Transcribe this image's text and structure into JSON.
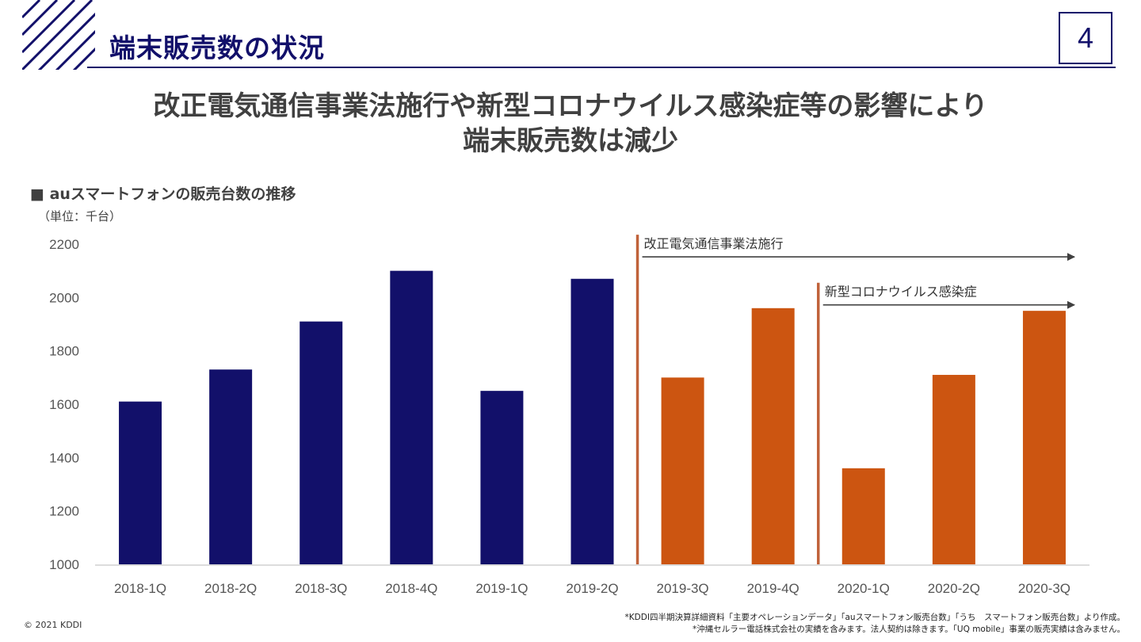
{
  "header": {
    "title": "端末販売数の状況",
    "page_number": "4"
  },
  "headline": {
    "line1": "改正電気通信事業法施行や新型コロナウイルス感染症等の影響により",
    "line2": "端末販売数は減少"
  },
  "chart_heading": "■ auスマートフォンの販売台数の推移",
  "unit_label": "（単位：千台）",
  "colors": {
    "navy": "#12106a",
    "orange": "#cc5511",
    "marker": "#c0623a",
    "arrow": "#404040"
  },
  "chart_data": {
    "type": "bar",
    "title": "auスマートフォンの販売台数の推移",
    "ylabel": "（単位：千台）",
    "xlabel": "",
    "ylim": [
      1000,
      2200
    ],
    "yticks": [
      "1000",
      "1200",
      "1400",
      "1600",
      "1800",
      "2000",
      "2200"
    ],
    "grid": false,
    "categories": [
      "2018-1Q",
      "2018-2Q",
      "2018-3Q",
      "2018-4Q",
      "2019-1Q",
      "2019-2Q",
      "2019-3Q",
      "2019-4Q",
      "2020-1Q",
      "2020-2Q",
      "2020-3Q"
    ],
    "values": [
      1610,
      1730,
      1910,
      2100,
      1650,
      2070,
      1700,
      1960,
      1360,
      1710,
      1950
    ],
    "bar_colors": [
      "navy",
      "navy",
      "navy",
      "navy",
      "navy",
      "navy",
      "orange",
      "orange",
      "orange",
      "orange",
      "orange"
    ],
    "annotations": [
      {
        "label": "改正電気通信事業法施行",
        "starts_after_category": "2019-2Q",
        "y": 2170
      },
      {
        "label": "新型コロナウイルス感染症",
        "starts_after_category": "2019-4Q",
        "y": 1990
      }
    ]
  },
  "footer": {
    "copyright": "© 2021 KDDI",
    "note1": "*KDDI四半期決算詳細資料「主要オペレーションデータ」「auスマートフォン販売台数」「うち　スマートフォン販売台数」より作成。",
    "note2": "*沖縄セルラー電話株式会社の実績を含みます。法人契約は除きます。「UQ mobile」事業の販売実績は含みません。"
  }
}
